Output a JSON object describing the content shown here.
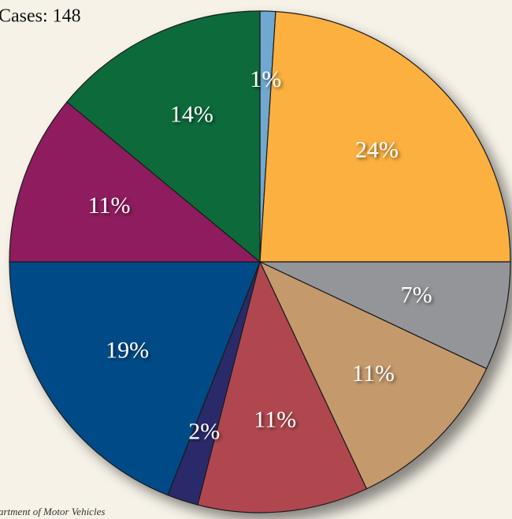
{
  "chart_data": {
    "type": "pie",
    "title": "Cases: 148",
    "source": "artment of Motor Vehicles",
    "categories": [
      null,
      null,
      null,
      null,
      null,
      null,
      null,
      null,
      null
    ],
    "values": [
      1,
      24,
      7,
      11,
      11,
      2,
      19,
      11,
      14
    ],
    "value_labels": [
      "1%",
      "24%",
      "7%",
      "11%",
      "11%",
      "2%",
      "19%",
      "11%",
      "14%"
    ],
    "colors": [
      "#6fa8d0",
      "#fbb040",
      "#939598",
      "#c49a6c",
      "#b0464f",
      "#2b2a6b",
      "#004b87",
      "#8e1f5e",
      "#0b6b3a"
    ]
  }
}
